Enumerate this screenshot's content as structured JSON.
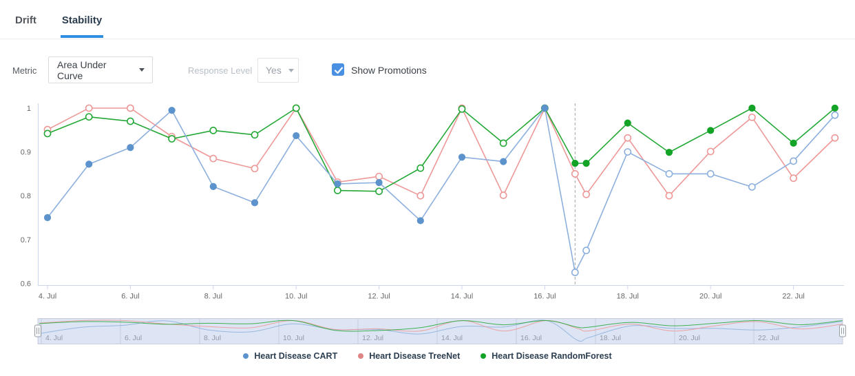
{
  "tabs": {
    "items": [
      {
        "label": "Drift",
        "active": false
      },
      {
        "label": "Stability",
        "active": true
      }
    ]
  },
  "controls": {
    "metric": {
      "label": "Metric",
      "value": "Area Under Curve"
    },
    "response_level": {
      "label": "Response Level",
      "value": "Yes",
      "disabled": true
    },
    "show_promotions": {
      "label": "Show Promotions",
      "checked": true
    }
  },
  "colors": {
    "tab_accent": "#2e8ee2",
    "checkbox": "#4a90e2",
    "axis_line": "#ccd6eb",
    "axis_text": "#666666",
    "promotion_line": "#a3a3a3",
    "navigator_bg": "#dde4f3",
    "navigator_border": "#c7cdda",
    "navigator_grid": "#c3cbdf",
    "navigator_label": "#9199a6",
    "legend_text": "#2c3e50",
    "series_cart": "#5d93cc",
    "series_treenet": "#e08585",
    "series_randomforest": "#13a327"
  },
  "chart_data": {
    "type": "line",
    "x_unit": "day of July",
    "x": [
      4,
      5,
      6,
      7,
      8,
      9,
      10,
      11,
      12,
      13,
      14,
      15,
      16,
      16.73,
      17,
      18,
      19,
      20,
      21,
      22,
      23
    ],
    "series": [
      {
        "name": "Heart Disease CART",
        "color": "#5d93cc",
        "line_color": "#8cafdd",
        "marker_filled": "before_promotion",
        "values": [
          0.75,
          0.872,
          0.91,
          0.995,
          0.821,
          0.784,
          0.937,
          0.827,
          0.83,
          0.743,
          0.888,
          0.878,
          1,
          0.625,
          0.675,
          0.9,
          0.85,
          0.85,
          0.82,
          0.879,
          0.984
        ]
      },
      {
        "name": "Heart Disease TreeNet",
        "color": "#e08585",
        "line_color": "#ee9797",
        "marker_filled": "never",
        "values": [
          0.951,
          1,
          1,
          0.935,
          0.885,
          0.862,
          1,
          0.831,
          0.844,
          0.8,
          1,
          0.801,
          1,
          0.85,
          0.803,
          0.932,
          0.8,
          0.901,
          0.979,
          0.84,
          0.932
        ]
      },
      {
        "name": "Heart Disease RandomForest",
        "color": "#13a327",
        "line_color": "#23a836",
        "marker_filled": "after_promotion",
        "values": [
          0.942,
          0.98,
          0.97,
          0.93,
          0.949,
          0.939,
          1,
          0.812,
          0.81,
          0.863,
          0.998,
          0.92,
          1,
          0.874,
          0.874,
          0.966,
          0.899,
          0.949,
          1,
          0.92,
          1
        ]
      }
    ],
    "ylim": [
      0.6,
      1.0
    ],
    "yticks": [
      1,
      0.9,
      0.8,
      0.7,
      0.6
    ],
    "ytick_labels": [
      "1",
      "0.9",
      "0.8",
      "0.7",
      "0.6"
    ],
    "xticks": [
      4,
      6,
      8,
      10,
      12,
      14,
      16,
      18,
      20,
      22
    ],
    "xtick_labels": [
      "4. Jul",
      "6. Jul",
      "8. Jul",
      "10. Jul",
      "12. Jul",
      "14. Jul",
      "16. Jul",
      "18. Jul",
      "20. Jul",
      "22. Jul"
    ],
    "promotion_day": 16.73,
    "grid": false,
    "legend_position": "bottom-center",
    "navigator": {
      "xticks": [
        4,
        6,
        8,
        10,
        12,
        14,
        16,
        18,
        20,
        22
      ],
      "xtick_labels": [
        "4. Jul",
        "6. Jul",
        "8. Jul",
        "10. Jul",
        "12. Jul",
        "14. Jul",
        "16. Jul",
        "18. Jul",
        "20. Jul",
        "22. Jul"
      ]
    }
  }
}
